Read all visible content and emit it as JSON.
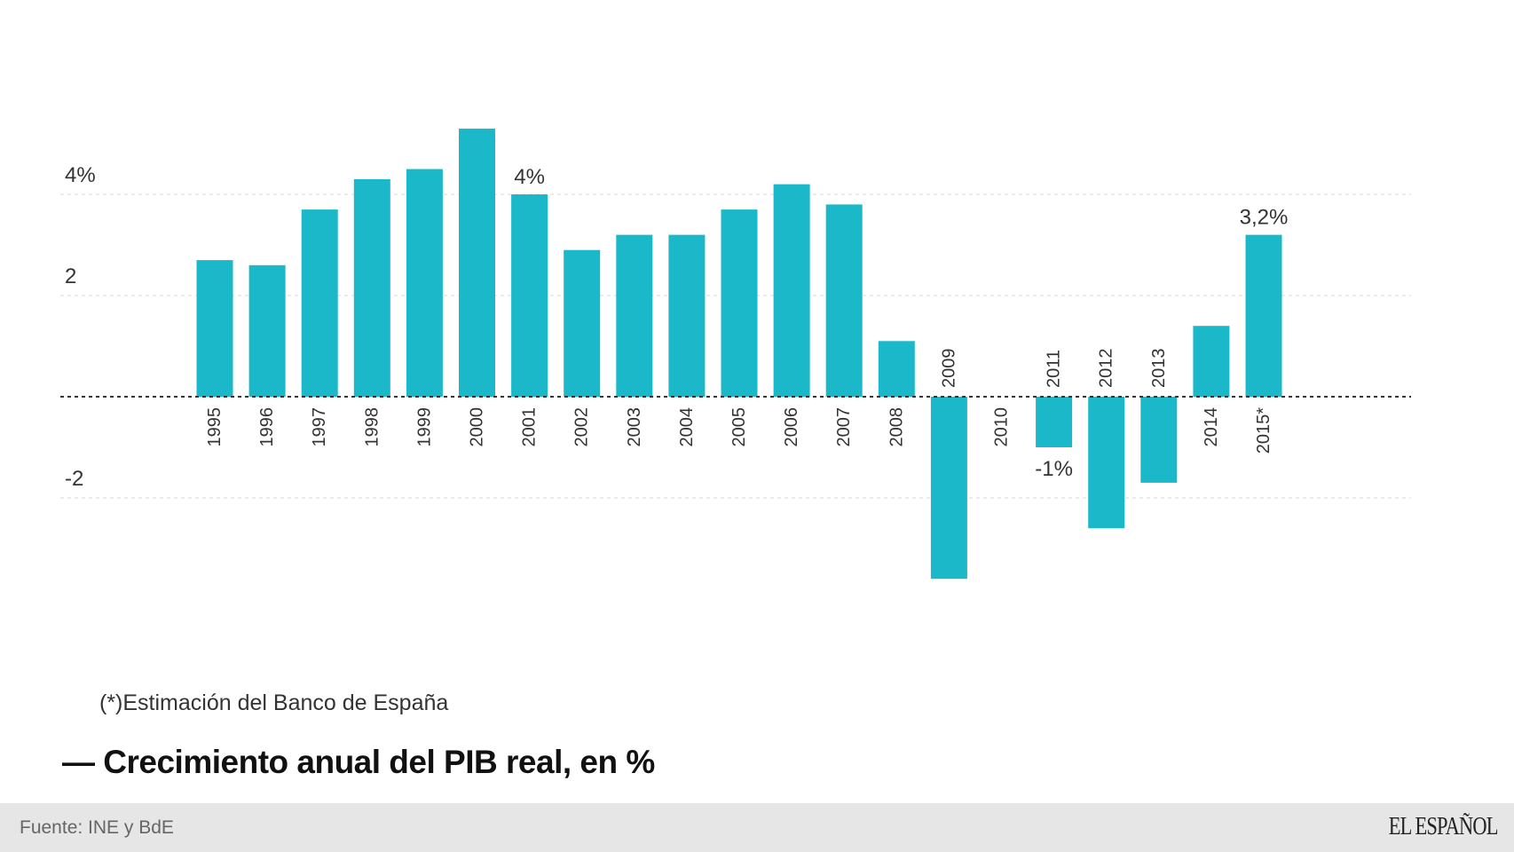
{
  "chart_data": {
    "type": "bar",
    "title": "Crecimiento anual del PIB real, en %",
    "note": "(*)Estimación del Banco de España",
    "xlabel": "",
    "ylabel": "",
    "ylim": [
      -4,
      5.5
    ],
    "y_ticks": [
      {
        "value": 4,
        "label": "4%"
      },
      {
        "value": 2,
        "label": "2"
      },
      {
        "value": -2,
        "label": "-2"
      }
    ],
    "grid": true,
    "color": "#1ab8c9",
    "categories": [
      "1995",
      "1996",
      "1997",
      "1998",
      "1999",
      "2000",
      "2001",
      "2002",
      "2003",
      "2004",
      "2005",
      "2006",
      "2007",
      "2008",
      "2009",
      "2010",
      "2011",
      "2012",
      "2013",
      "2014",
      "2015*"
    ],
    "values": [
      2.7,
      2.6,
      3.7,
      4.3,
      4.5,
      5.3,
      4.0,
      2.9,
      3.2,
      3.2,
      3.7,
      4.2,
      3.8,
      1.1,
      -3.6,
      0.0,
      -1.0,
      -2.6,
      -1.7,
      1.4,
      3.2
    ],
    "annotations": [
      {
        "category": "2001",
        "label": "4%"
      },
      {
        "category": "2011",
        "label": "-1%"
      },
      {
        "category": "2015*",
        "label": "3,2%"
      }
    ]
  },
  "footer": {
    "source": "Fuente: INE y BdE",
    "logo": "EL ESPAÑOL"
  }
}
